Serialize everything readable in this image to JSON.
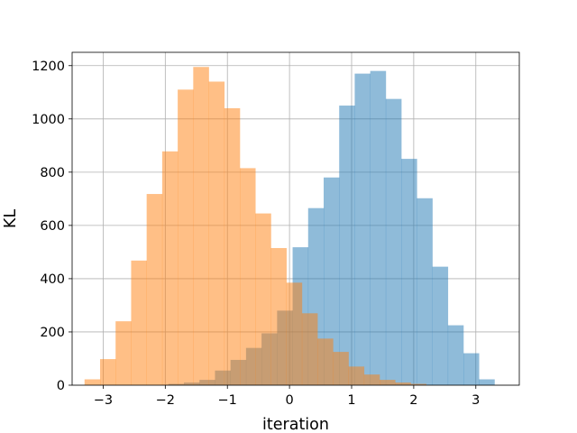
{
  "chart_data": {
    "type": "bar",
    "subtype": "overlapping-histogram",
    "title": "",
    "xlabel": "iteration",
    "ylabel": "KL",
    "xlim": [
      -3.5,
      3.7
    ],
    "ylim": [
      0,
      1250
    ],
    "xticks": [
      -3,
      -2,
      -1,
      0,
      1,
      2,
      3
    ],
    "xtick_labels": [
      "−3",
      "−2",
      "−1",
      "0",
      "1",
      "2",
      "3"
    ],
    "yticks": [
      0,
      200,
      400,
      600,
      800,
      1000,
      1200
    ],
    "ytick_labels": [
      "0",
      "200",
      "400",
      "600",
      "800",
      "1000",
      "1200"
    ],
    "grid": true,
    "legend": "none",
    "series": [
      {
        "color": "#1f77b4",
        "alpha": 0.5,
        "bins": [
          [
            -1.95,
            -1.7,
            5
          ],
          [
            -1.7,
            -1.45,
            10
          ],
          [
            -1.45,
            -1.2,
            20
          ],
          [
            -1.2,
            -0.95,
            55
          ],
          [
            -0.95,
            -0.7,
            95
          ],
          [
            -0.7,
            -0.45,
            140
          ],
          [
            -0.45,
            -0.2,
            195
          ],
          [
            -0.2,
            0.05,
            280
          ],
          [
            0.05,
            0.3,
            518
          ],
          [
            0.3,
            0.55,
            665
          ],
          [
            0.55,
            0.8,
            780
          ],
          [
            0.8,
            1.05,
            1050
          ],
          [
            1.05,
            1.3,
            1170
          ],
          [
            1.3,
            1.55,
            1180
          ],
          [
            1.55,
            1.8,
            1075
          ],
          [
            1.8,
            2.05,
            850
          ],
          [
            2.05,
            2.3,
            702
          ],
          [
            2.3,
            2.55,
            445
          ],
          [
            2.55,
            2.8,
            225
          ],
          [
            2.8,
            3.05,
            120
          ],
          [
            3.05,
            3.3,
            22
          ]
        ]
      },
      {
        "color": "#ff7f0e",
        "alpha": 0.5,
        "bins": [
          [
            -3.3,
            -3.05,
            22
          ],
          [
            -3.05,
            -2.8,
            98
          ],
          [
            -2.8,
            -2.55,
            240
          ],
          [
            -2.55,
            -2.3,
            468
          ],
          [
            -2.3,
            -2.05,
            718
          ],
          [
            -2.05,
            -1.8,
            878
          ],
          [
            -1.8,
            -1.55,
            1110
          ],
          [
            -1.55,
            -1.3,
            1195
          ],
          [
            -1.3,
            -1.05,
            1140
          ],
          [
            -1.05,
            -0.8,
            1040
          ],
          [
            -0.8,
            -0.55,
            815
          ],
          [
            -0.55,
            -0.3,
            645
          ],
          [
            -0.3,
            -0.05,
            515
          ],
          [
            -0.05,
            0.2,
            385
          ],
          [
            0.2,
            0.45,
            270
          ],
          [
            0.45,
            0.7,
            175
          ],
          [
            0.7,
            0.95,
            125
          ],
          [
            0.95,
            1.2,
            70
          ],
          [
            1.2,
            1.45,
            40
          ],
          [
            1.45,
            1.7,
            20
          ],
          [
            1.7,
            1.95,
            10
          ],
          [
            1.95,
            2.2,
            5
          ]
        ]
      }
    ]
  }
}
